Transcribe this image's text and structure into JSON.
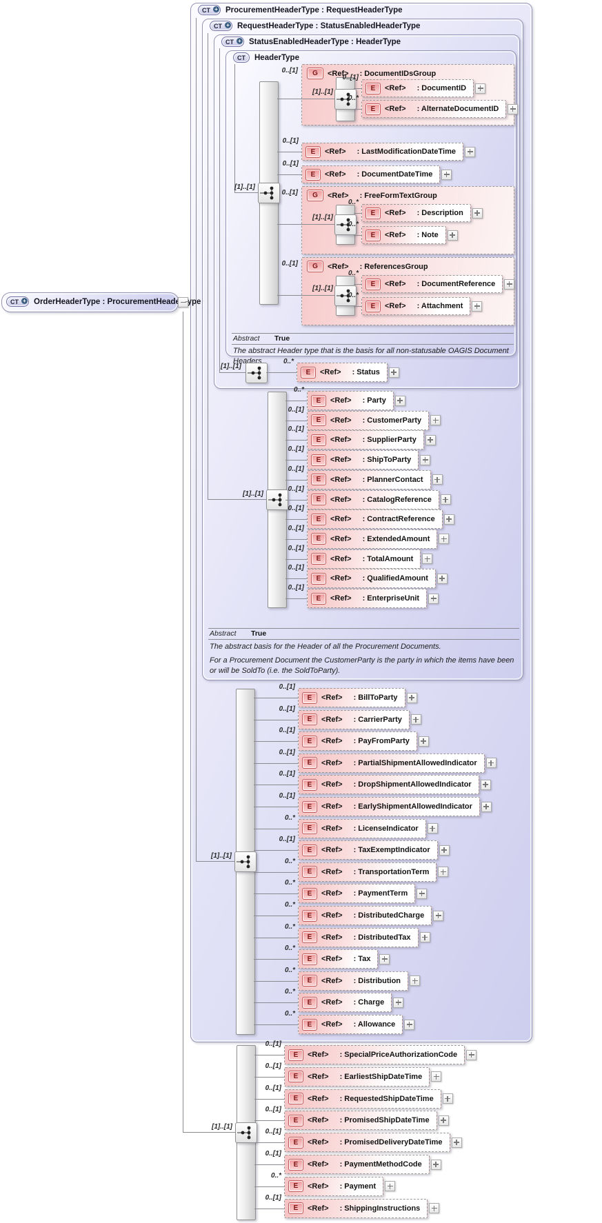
{
  "labels": {
    "ref": "<Ref>"
  },
  "icons": {
    "complex_type": "CT",
    "element": "E",
    "group": "G"
  },
  "root": {
    "title": "OrderHeaderType : ProcurementHeaderType"
  },
  "sections": {
    "procurement": {
      "title": "ProcurementHeaderType : RequestHeaderType",
      "compositor_card": "[1]..[1]",
      "items": [
        {
          "card": "0..[1]",
          "name": ": BillToParty"
        },
        {
          "card": "0..[1]",
          "name": ": CarrierParty"
        },
        {
          "card": "0..[1]",
          "name": ": PayFromParty"
        },
        {
          "card": "0..[1]",
          "name": ": PartialShipmentAllowedIndicator"
        },
        {
          "card": "0..[1]",
          "name": ": DropShipmentAllowedIndicator"
        },
        {
          "card": "0..[1]",
          "name": ": EarlyShipmentAllowedIndicator"
        },
        {
          "card": "0..*",
          "name": ": LicenseIndicator"
        },
        {
          "card": "0..[1]",
          "name": ": TaxExemptIndicator"
        },
        {
          "card": "0..*",
          "name": ": TransportationTerm"
        },
        {
          "card": "0..*",
          "name": ": PaymentTerm"
        },
        {
          "card": "0..*",
          "name": ": DistributedCharge"
        },
        {
          "card": "0..*",
          "name": ": DistributedTax"
        },
        {
          "card": "0..*",
          "name": ": Tax"
        },
        {
          "card": "0..*",
          "name": ": Distribution"
        },
        {
          "card": "0..*",
          "name": ": Charge"
        },
        {
          "card": "0..*",
          "name": ": Allowance"
        }
      ]
    },
    "request": {
      "title": "RequestHeaderType : StatusEnabledHeaderType",
      "compositor_card": "[1]..[1]",
      "items": [
        {
          "card": "0..*",
          "name": ": Party"
        },
        {
          "card": "0..[1]",
          "name": ": CustomerParty"
        },
        {
          "card": "0..[1]",
          "name": ": SupplierParty"
        },
        {
          "card": "0..[1]",
          "name": ": ShipToParty"
        },
        {
          "card": "0..[1]",
          "name": ": PlannerContact"
        },
        {
          "card": "0..[1]",
          "name": ": CatalogReference"
        },
        {
          "card": "0..[1]",
          "name": ": ContractReference"
        },
        {
          "card": "0..[1]",
          "name": ": ExtendedAmount"
        },
        {
          "card": "0..[1]",
          "name": ": TotalAmount"
        },
        {
          "card": "0..[1]",
          "name": ": QualifiedAmount"
        },
        {
          "card": "0..[1]",
          "name": ": EnterpriseUnit"
        }
      ],
      "abstract": {
        "label": "Abstract",
        "value": "True"
      },
      "annotations": [
        "The abstract basis for the Header of all the Procurement Documents.",
        "For a Procurement Document the CustomerParty is the party in which the items have been or will be SoldTo (i.e. the SoldToParty)."
      ]
    },
    "status_enabled": {
      "title": "StatusEnabledHeaderType : HeaderType",
      "compositor_card": "[1]..[1]",
      "items": [
        {
          "card": "0..*",
          "name": ": Status"
        }
      ]
    },
    "header": {
      "title": "HeaderType",
      "compositor_card": "[1]..[1]",
      "abstract": {
        "label": "Abstract",
        "value": "True"
      },
      "annotation": "The abstract Header type that is the basis for all non-statusable OAGIS Document Headers",
      "children": [
        {
          "kind": "group",
          "card": "0..[1]",
          "name": ": DocumentIDsGroup",
          "compositor_card": "[1]..[1]",
          "children": [
            {
              "card": "0..[1]",
              "name": ": DocumentID"
            },
            {
              "card": "0..*",
              "name": ": AlternateDocumentID"
            }
          ]
        },
        {
          "kind": "element",
          "card": "0..[1]",
          "name": ": LastModificationDateTime"
        },
        {
          "kind": "element",
          "card": "0..[1]",
          "name": ": DocumentDateTime"
        },
        {
          "kind": "group",
          "card": "0..[1]",
          "name": ": FreeFormTextGroup",
          "compositor_card": "[1]..[1]",
          "children": [
            {
              "card": "0..*",
              "name": ": Description"
            },
            {
              "card": "0..*",
              "name": ": Note"
            }
          ]
        },
        {
          "kind": "group",
          "card": "0..[1]",
          "name": ": ReferencesGroup",
          "compositor_card": "[1]..[1]",
          "children": [
            {
              "card": "0..*",
              "name": ": DocumentReference"
            },
            {
              "card": "0..*",
              "name": ": Attachment"
            }
          ]
        }
      ]
    },
    "order_extension": {
      "compositor_card": "[1]..[1]",
      "items": [
        {
          "card": "0..[1]",
          "name": ": SpecialPriceAuthorizationCode"
        },
        {
          "card": "0..[1]",
          "name": ": EarliestShipDateTime"
        },
        {
          "card": "0..[1]",
          "name": ": RequestedShipDateTime"
        },
        {
          "card": "0..[1]",
          "name": ": PromisedShipDateTime"
        },
        {
          "card": "0..[1]",
          "name": ": PromisedDeliveryDateTime"
        },
        {
          "card": "0..[1]",
          "name": ": PaymentMethodCode"
        },
        {
          "card": "0..*",
          "name": ": Payment"
        },
        {
          "card": "0..[1]",
          "name": ": ShippingInstructions"
        }
      ]
    }
  }
}
